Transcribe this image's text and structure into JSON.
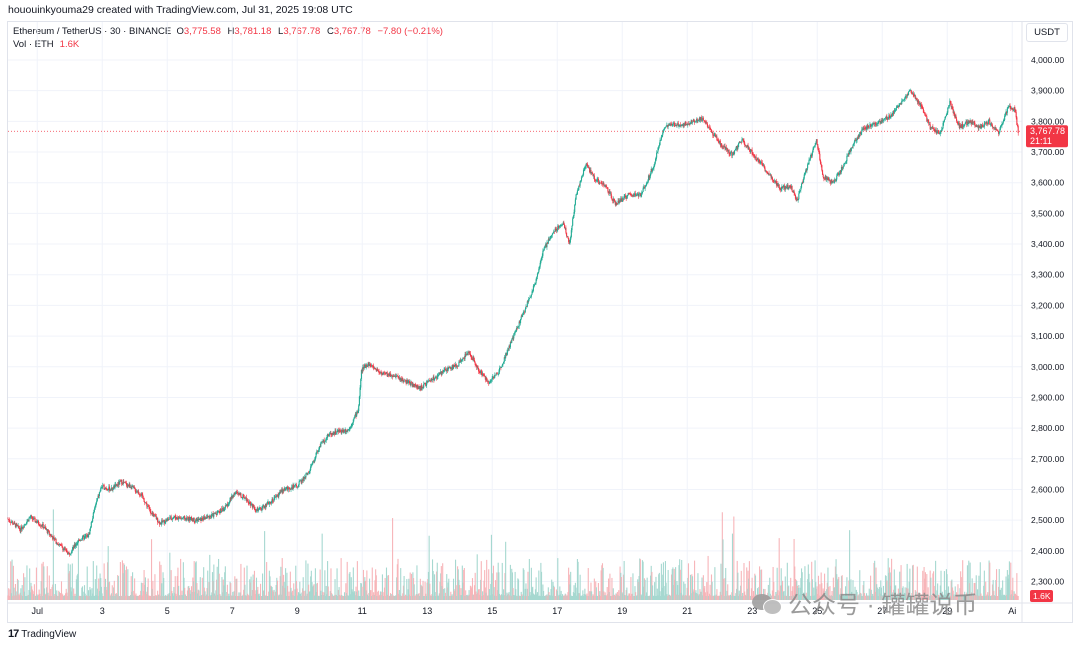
{
  "header": {
    "credit": "hououinkyouma29 created with TradingView.com, Jul 31, 2025 19:08 UTC"
  },
  "legend": {
    "symbol": "Ethereum / TetherUS · 30 · BINANCE",
    "o_label": "O",
    "o_value": "3,775.58",
    "h_label": "H",
    "h_value": "3,781.18",
    "l_label": "L",
    "l_value": "3,767.78",
    "c_label": "C",
    "c_value": "3,767.78",
    "change": "−7.80 (−0.21%)",
    "vol_label": "Vol · ETH",
    "vol_value": "1.6K"
  },
  "currency": "USDT",
  "last_price": {
    "value": "3,767.78",
    "countdown": "21:11"
  },
  "volume_badge": "1.6K",
  "footer": {
    "brand": "TradingView"
  },
  "watermark": {
    "text": "公众号 · 罐罐说币"
  },
  "colors": {
    "up": "#22ab94",
    "down": "#f23645",
    "grid": "#f0f3fa",
    "volume_up": "#a6d8d0",
    "volume_down": "#f7b5b9"
  },
  "chart_data": {
    "type": "candlestick",
    "title": "Ethereum / TetherUS · 30 · BINANCE",
    "interval": "30",
    "y_axis": {
      "ticks": [
        2300,
        2400,
        2500,
        2600,
        2700,
        2800,
        2900,
        3000,
        3100,
        3200,
        3300,
        3400,
        3500,
        3600,
        3700,
        3800,
        3900,
        4000
      ],
      "tick_labels": [
        "2,300.00",
        "2,400.00",
        "2,500.00",
        "2,600.00",
        "2,700.00",
        "2,800.00",
        "2,900.00",
        "3,000.00",
        "3,100.00",
        "3,200.00",
        "3,300.00",
        "3,400.00",
        "3,500.00",
        "3,600.00",
        "3,700.00",
        "3,800.00",
        "3,900.00",
        "4,000.00"
      ],
      "range": [
        2250,
        4035
      ]
    },
    "x_axis": {
      "tick_labels": [
        "Jul",
        "3",
        "5",
        "7",
        "9",
        "11",
        "13",
        "15",
        "17",
        "19",
        "21",
        "23",
        "25",
        "27",
        "29",
        "Ai"
      ],
      "tick_days": [
        1,
        3,
        5,
        7,
        9,
        11,
        13,
        15,
        17,
        19,
        21,
        23,
        25,
        27,
        29,
        31
      ],
      "range_days": [
        0.1,
        31.3
      ]
    },
    "price_path": [
      [
        0.1,
        2505
      ],
      [
        0.5,
        2470
      ],
      [
        0.8,
        2510
      ],
      [
        1.2,
        2480
      ],
      [
        1.6,
        2430
      ],
      [
        2.0,
        2390
      ],
      [
        2.3,
        2435
      ],
      [
        2.6,
        2450
      ],
      [
        2.8,
        2545
      ],
      [
        3.0,
        2610
      ],
      [
        3.3,
        2600
      ],
      [
        3.6,
        2625
      ],
      [
        3.9,
        2610
      ],
      [
        4.2,
        2585
      ],
      [
        4.5,
        2530
      ],
      [
        4.8,
        2490
      ],
      [
        5.2,
        2510
      ],
      [
        5.6,
        2505
      ],
      [
        6.0,
        2500
      ],
      [
        6.4,
        2515
      ],
      [
        6.8,
        2540
      ],
      [
        7.1,
        2590
      ],
      [
        7.4,
        2575
      ],
      [
        7.8,
        2530
      ],
      [
        8.2,
        2560
      ],
      [
        8.6,
        2600
      ],
      [
        9.0,
        2610
      ],
      [
        9.4,
        2660
      ],
      [
        9.7,
        2740
      ],
      [
        10.0,
        2780
      ],
      [
        10.3,
        2790
      ],
      [
        10.6,
        2795
      ],
      [
        10.9,
        2860
      ],
      [
        11.0,
        2990
      ],
      [
        11.2,
        3010
      ],
      [
        11.6,
        2980
      ],
      [
        12.0,
        2970
      ],
      [
        12.4,
        2950
      ],
      [
        12.8,
        2930
      ],
      [
        13.2,
        2960
      ],
      [
        13.6,
        2990
      ],
      [
        14.0,
        3010
      ],
      [
        14.3,
        3050
      ],
      [
        14.6,
        2990
      ],
      [
        14.9,
        2950
      ],
      [
        15.2,
        2980
      ],
      [
        15.6,
        3080
      ],
      [
        16.0,
        3180
      ],
      [
        16.3,
        3260
      ],
      [
        16.6,
        3380
      ],
      [
        16.9,
        3440
      ],
      [
        17.2,
        3470
      ],
      [
        17.4,
        3400
      ],
      [
        17.6,
        3560
      ],
      [
        17.9,
        3660
      ],
      [
        18.2,
        3610
      ],
      [
        18.5,
        3590
      ],
      [
        18.8,
        3530
      ],
      [
        19.2,
        3560
      ],
      [
        19.6,
        3560
      ],
      [
        20.0,
        3660
      ],
      [
        20.3,
        3780
      ],
      [
        20.6,
        3790
      ],
      [
        20.9,
        3790
      ],
      [
        21.2,
        3800
      ],
      [
        21.5,
        3810
      ],
      [
        21.8,
        3760
      ],
      [
        22.1,
        3720
      ],
      [
        22.4,
        3690
      ],
      [
        22.7,
        3740
      ],
      [
        23.0,
        3700
      ],
      [
        23.3,
        3660
      ],
      [
        23.6,
        3620
      ],
      [
        23.9,
        3580
      ],
      [
        24.2,
        3590
      ],
      [
        24.4,
        3540
      ],
      [
        24.7,
        3650
      ],
      [
        25.0,
        3740
      ],
      [
        25.2,
        3620
      ],
      [
        25.5,
        3600
      ],
      [
        25.8,
        3650
      ],
      [
        26.1,
        3720
      ],
      [
        26.4,
        3770
      ],
      [
        26.7,
        3790
      ],
      [
        27.0,
        3800
      ],
      [
        27.3,
        3820
      ],
      [
        27.6,
        3860
      ],
      [
        27.9,
        3900
      ],
      [
        28.2,
        3850
      ],
      [
        28.5,
        3780
      ],
      [
        28.8,
        3760
      ],
      [
        29.1,
        3860
      ],
      [
        29.4,
        3780
      ],
      [
        29.7,
        3800
      ],
      [
        30.0,
        3780
      ],
      [
        30.3,
        3800
      ],
      [
        30.6,
        3760
      ],
      [
        30.9,
        3850
      ],
      [
        31.1,
        3840
      ],
      [
        31.2,
        3767.78
      ]
    ],
    "last_price": 3767.78
  }
}
